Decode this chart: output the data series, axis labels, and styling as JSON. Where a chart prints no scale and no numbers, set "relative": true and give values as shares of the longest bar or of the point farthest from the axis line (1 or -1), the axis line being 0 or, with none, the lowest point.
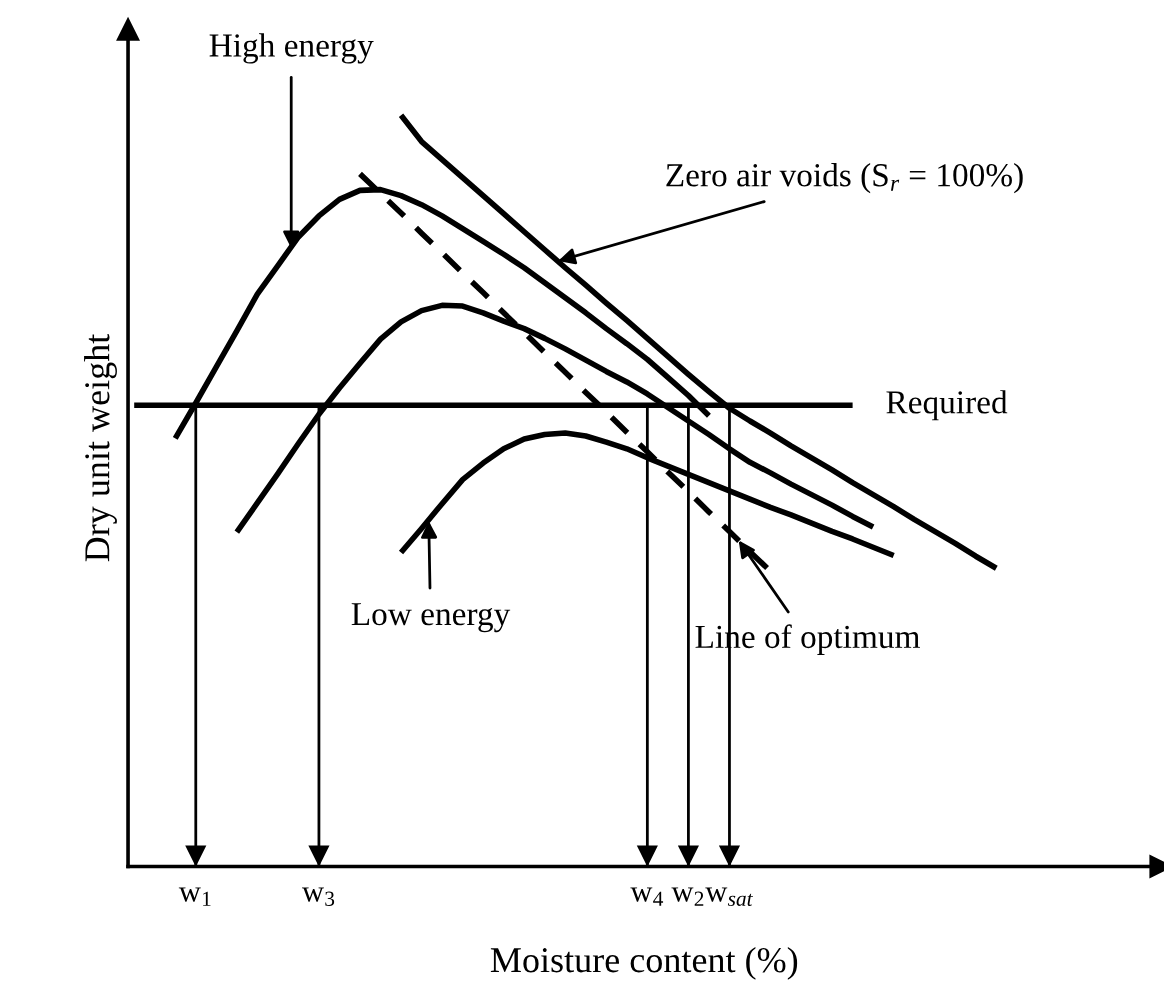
{
  "chart_data": {
    "type": "line",
    "relative": true,
    "xlabel": "Moisture content (%)",
    "ylabel": "Dry unit weight",
    "categories": [
      null,
      null,
      null,
      "w$_{1}$",
      null,
      null,
      null,
      null,
      null,
      "w$_{3}$",
      null,
      null,
      null,
      null,
      null,
      null,
      null,
      null,
      null,
      null,
      null,
      null,
      null,
      null,
      null,
      "w$_{4}$",
      null,
      "w$_{2}$",
      null,
      "w$_{sat}$",
      null,
      null,
      null,
      null,
      null,
      null,
      null,
      null,
      null,
      null,
      null,
      null,
      null,
      null,
      null,
      null,
      null,
      null,
      null,
      null
    ],
    "series": [
      {
        "color": "#000000",
        "values": [
          null,
          null,
          null,
          null,
          null,
          null,
          null,
          null,
          null,
          null,
          null,
          null,
          null,
          1.0,
          0.965,
          0.941,
          0.917,
          0.893,
          0.869,
          0.845,
          0.821,
          0.797,
          0.774,
          0.75,
          0.727,
          0.703,
          0.679,
          0.655,
          0.632,
          0.61,
          0.593,
          0.577,
          0.56,
          0.544,
          0.528,
          0.511,
          0.495,
          0.479,
          0.462,
          0.446,
          0.43,
          0.413,
          0.397,
          null,
          null,
          null,
          null,
          null,
          null,
          null
        ]
      },
      {
        "color": "#000000",
        "values": [
          null,
          null,
          0.57,
          0.617,
          0.665,
          0.713,
          0.762,
          0.8,
          0.838,
          0.866,
          0.888,
          0.9,
          0.901,
          0.893,
          0.881,
          0.866,
          0.849,
          0.832,
          0.815,
          0.797,
          0.777,
          0.757,
          0.737,
          0.716,
          0.696,
          0.675,
          0.651,
          0.627,
          0.6,
          null,
          null,
          null,
          null,
          null,
          null,
          null,
          null,
          null,
          null,
          null,
          null,
          null,
          null,
          null,
          null,
          null,
          null,
          null,
          null,
          null
        ]
      },
      {
        "color": "#000000",
        "values": [
          null,
          null,
          null,
          null,
          null,
          0.445,
          0.484,
          0.523,
          0.563,
          0.602,
          0.637,
          0.67,
          0.702,
          0.725,
          0.74,
          0.747,
          0.746,
          0.737,
          0.726,
          0.716,
          0.703,
          0.689,
          0.674,
          0.659,
          0.645,
          0.629,
          0.611,
          0.593,
          0.575,
          0.556,
          0.538,
          0.524,
          0.509,
          0.495,
          0.481,
          0.466,
          0.452,
          null,
          null,
          null,
          null,
          null,
          null,
          null,
          null,
          null,
          null,
          null,
          null,
          null
        ]
      },
      {
        "color": "#000000",
        "values": [
          null,
          null,
          null,
          null,
          null,
          null,
          null,
          null,
          null,
          null,
          null,
          null,
          null,
          0.418,
          0.45,
          0.483,
          0.515,
          0.537,
          0.556,
          0.569,
          0.575,
          0.577,
          0.573,
          0.565,
          0.556,
          0.544,
          0.533,
          0.522,
          0.511,
          0.5,
          0.489,
          0.478,
          0.468,
          0.457,
          0.446,
          0.436,
          0.425,
          0.414,
          null,
          null,
          null,
          null,
          null,
          null,
          null,
          null,
          null,
          null,
          null,
          null
        ]
      },
      {
        "color": "#000000",
        "line_style": "dashed",
        "values": [
          null,
          null,
          null,
          null,
          null,
          null,
          null,
          null,
          null,
          null,
          null,
          0.922,
          0.896,
          0.87,
          0.843,
          0.817,
          0.79,
          0.764,
          0.737,
          0.711,
          0.684,
          0.658,
          0.631,
          0.605,
          0.578,
          0.552,
          0.525,
          0.499,
          0.472,
          0.446,
          0.419,
          0.393,
          null,
          null,
          null,
          null,
          null,
          null,
          null,
          null,
          null,
          null,
          null,
          null,
          null,
          null,
          null,
          null,
          null,
          null
        ]
      },
      {
        "color": "#000000",
        "values": [
          0.614,
          0.614,
          0.614,
          0.614,
          0.614,
          0.614,
          0.614,
          0.614,
          0.614,
          0.614,
          0.614,
          0.614,
          0.614,
          0.614,
          0.614,
          0.614,
          0.614,
          0.614,
          0.614,
          0.614,
          0.614,
          0.614,
          0.614,
          0.614,
          0.614,
          0.614,
          0.614,
          0.614,
          0.614,
          0.614,
          0.614,
          0.614,
          0.614,
          0.614,
          0.614,
          0.614,
          null,
          null,
          null,
          null,
          null,
          null,
          null,
          null,
          null,
          null,
          null,
          null,
          null,
          null
        ]
      }
    ],
    "ref_lines": [
      {
        "axis": "x",
        "value": "w$_{1}$"
      },
      {
        "axis": "x",
        "value": "w$_{3}$"
      },
      {
        "axis": "x",
        "value": "w$_{4}$"
      },
      {
        "axis": "x",
        "value": "w$_{2}$"
      },
      {
        "axis": "x",
        "value": "w$_{sat}$"
      }
    ],
    "annotations": [
      "High energy",
      "Zero air voids (S$_{r}$ = 100%)",
      "Required",
      "Low energy",
      "Line of optimum"
    ]
  }
}
